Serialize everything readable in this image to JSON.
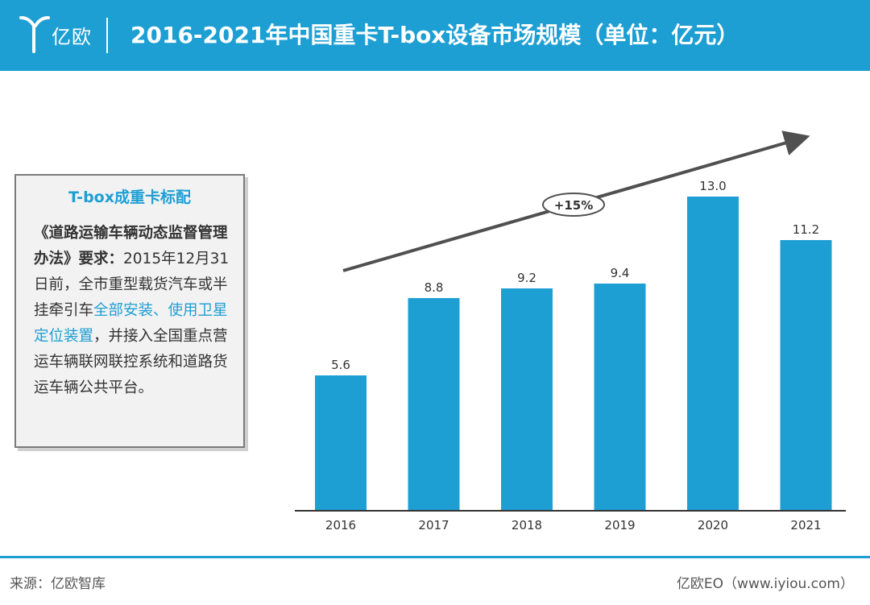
{
  "header": {
    "logo_text": "亿欧",
    "title": "2016-2021年中国重卡T-box设备市场规模（单位：亿元）"
  },
  "infobox": {
    "title": "T-box成重卡标配",
    "body_bold": "《道路运输车辆动态监督管理办法》要求：",
    "body_part1": "2015年12月31日前，全市重型载货汽车或半挂牵引车",
    "body_highlight": "全部安装、使用卫星定位装置",
    "body_part2": "，并接入全国重点营运车辆联网联控系统和道路货运车辆公共平台。"
  },
  "chart_data": {
    "type": "bar",
    "title": "2016-2021年中国重卡T-box设备市场规模（单位：亿元）",
    "categories": [
      "2016",
      "2017",
      "2018",
      "2019",
      "2020",
      "2021"
    ],
    "values": [
      5.6,
      8.8,
      9.2,
      9.4,
      13.0,
      11.2
    ],
    "value_labels": [
      "5.6",
      "8.8",
      "9.2",
      "9.4",
      "13.0",
      "11.2"
    ],
    "ylim": [
      0,
      13.0
    ],
    "grid": false,
    "bar_color": "#1e9fd4",
    "trend_annotation": "+15%"
  },
  "footer": {
    "source": "来源：亿欧智库",
    "credit": "亿欧EO（www.iyiou.com）"
  }
}
